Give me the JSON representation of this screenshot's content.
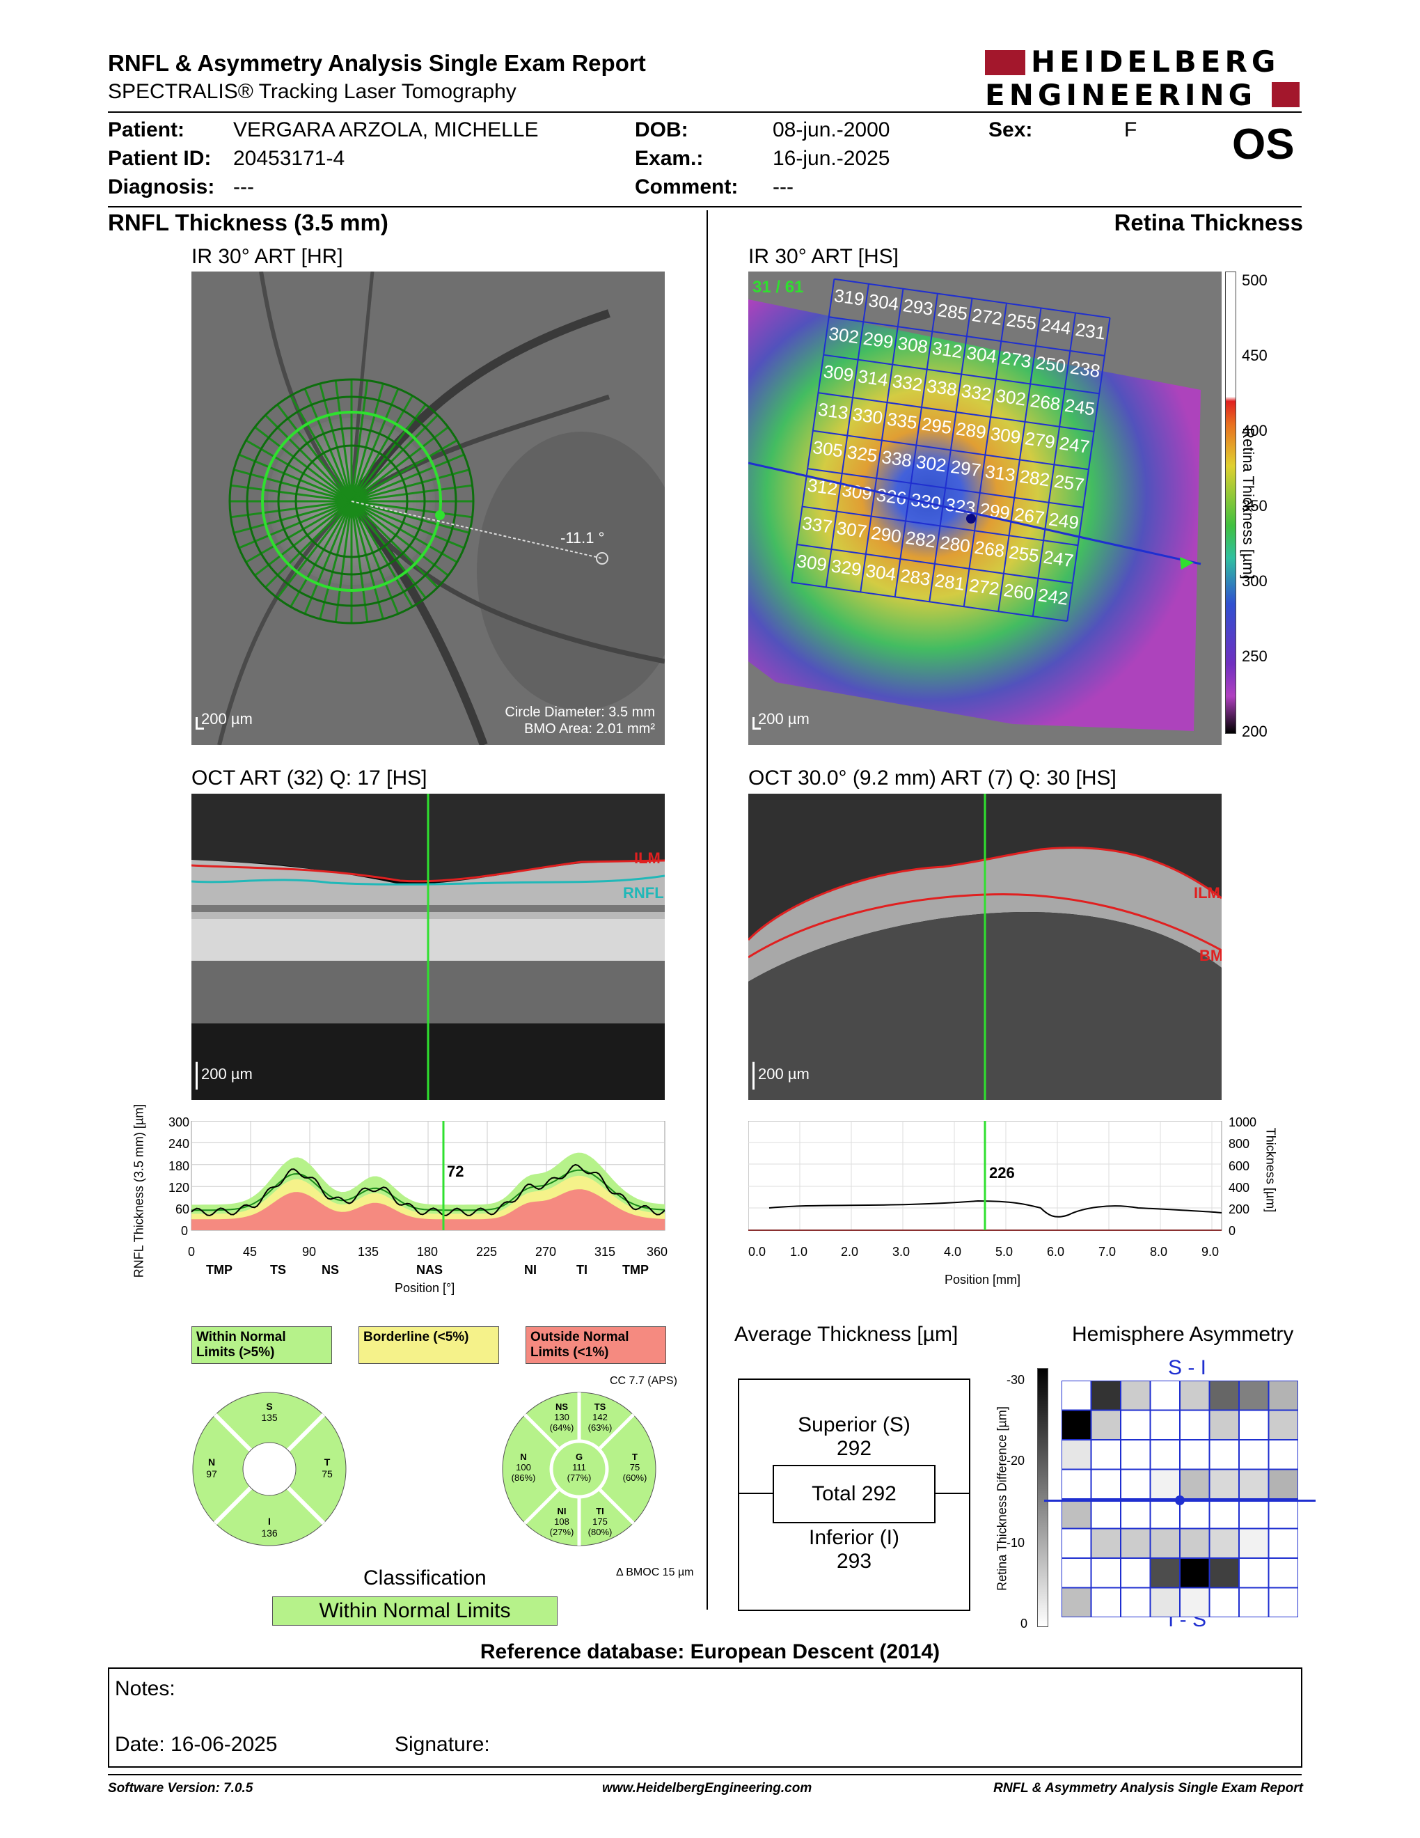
{
  "header": {
    "title": "RNFL & Asymmetry Analysis Single Exam Report",
    "subtitle": "SPECTRALIS® Tracking Laser Tomography",
    "logo_line1": "HEIDELBERG",
    "logo_line2": "ENGINEERING"
  },
  "patient": {
    "patient_label": "Patient:",
    "patient_value": "VERGARA ARZOLA, MICHELLE",
    "id_label": "Patient ID:",
    "id_value": "20453171-4",
    "diagnosis_label": "Diagnosis:",
    "diagnosis_value": "---",
    "dob_label": "DOB:",
    "dob_value": "08-jun.-2000",
    "exam_label": "Exam.:",
    "exam_value": "16-jun.-2025",
    "comment_label": "Comment:",
    "comment_value": "---",
    "sex_label": "Sex:",
    "sex_value": "F",
    "eye": "OS"
  },
  "left": {
    "section_title": "RNFL Thickness (3.5 mm)",
    "ir_title": "IR 30° ART [HR]",
    "ir_angle": "-11.1 °",
    "ir_scale": "200 µm",
    "circle_diameter": "Circle Diameter: 3.5 mm",
    "bmo_area": "BMO Area: 2.01 mm²",
    "oct_title": "OCT ART (32) Q: 17 [HS]",
    "oct_scale": "200 µm",
    "ilm": "ILM",
    "rnfl": "RNFL"
  },
  "right": {
    "section_title": "Retina Thickness",
    "ir_title": "IR 30° ART [HS]",
    "ir_scale": "200 µm",
    "grid_corner": "31 / 61",
    "colorbar_ticks": [
      "500",
      "450",
      "400",
      "350",
      "300",
      "250",
      "200"
    ],
    "colorbar_label": "Retina Thickness [µm]",
    "grid_values": [
      [
        "319",
        "304",
        "293",
        "285",
        "272",
        "255",
        "244",
        "231"
      ],
      [
        "302",
        "299",
        "308",
        "312",
        "304",
        "273",
        "250",
        "238"
      ],
      [
        "309",
        "314",
        "332",
        "338",
        "332",
        "302",
        "268",
        "245"
      ],
      [
        "313",
        "330",
        "335",
        "295",
        "289",
        "309",
        "279",
        "247"
      ],
      [
        "305",
        "325",
        "338",
        "302",
        "297",
        "313",
        "282",
        "257"
      ],
      [
        "312",
        "309",
        "326",
        "330",
        "323",
        "299",
        "267",
        "249"
      ],
      [
        "337",
        "307",
        "290",
        "282",
        "280",
        "268",
        "255",
        "247"
      ],
      [
        "309",
        "329",
        "304",
        "283",
        "281",
        "272",
        "260",
        "242"
      ]
    ],
    "oct_title": "OCT 30.0° (9.2 mm) ART (7) Q: 30 [HS]",
    "oct_scale": "200 µm",
    "ilm": "ILM",
    "bm": "BM"
  },
  "rnfl_plot": {
    "ylabel": "RNFL Thickness (3.5 mm) [µm]",
    "yticks": [
      "300",
      "240",
      "180",
      "120",
      "60",
      "0"
    ],
    "xticks": [
      "0",
      "45",
      "90",
      "135",
      "180",
      "225",
      "270",
      "315",
      "360"
    ],
    "sectors": [
      "TMP",
      "TS",
      "NS",
      "NAS",
      "NI",
      "TI",
      "TMP"
    ],
    "xlabel": "Position [°]",
    "cursor_value": "72"
  },
  "retina_plot": {
    "ylabel": "Thickness [µm]",
    "yticks": [
      "1000",
      "800",
      "600",
      "400",
      "200",
      "0"
    ],
    "xticks": [
      "0.0",
      "1.0",
      "2.0",
      "3.0",
      "4.0",
      "5.0",
      "6.0",
      "7.0",
      "8.0",
      "9.0"
    ],
    "xlabel": "Position [mm]",
    "cursor_value": "226"
  },
  "legend": {
    "within": "Within Normal Limits (>5%)",
    "borderline": "Borderline (<5%)",
    "outside": "Outside Normal Limits (<1%)",
    "within_color": "#b6f28a",
    "borderline_color": "#f5f28a",
    "outside_color": "#f58a80"
  },
  "sector_left": {
    "S": "135",
    "N": "97",
    "T": "75",
    "I": "136"
  },
  "sector_right": {
    "cc": "CC 7.7 (APS)",
    "NS": "NS",
    "NS_val": "130",
    "NS_pct": "(64%)",
    "TS": "TS",
    "TS_val": "142",
    "TS_pct": "(63%)",
    "N": "N",
    "N_val": "100",
    "N_pct": "(86%)",
    "G": "G",
    "G_val": "111",
    "G_pct": "(77%)",
    "T": "T",
    "T_val": "75",
    "T_pct": "(60%)",
    "NI": "NI",
    "NI_val": "108",
    "NI_pct": "(27%)",
    "TI": "TI",
    "TI_val": "175",
    "TI_pct": "(80%)",
    "bmoc": "Δ BMOC 15 µm"
  },
  "classification": {
    "label": "Classification",
    "value": "Within Normal Limits"
  },
  "avg_thickness": {
    "title": "Average Thickness [µm]",
    "superior_label": "Superior (S)",
    "superior_value": "292",
    "total_label": "Total 292",
    "inferior_label": "Inferior (I)",
    "inferior_value": "293"
  },
  "asymmetry": {
    "title": "Hemisphere Asymmetry",
    "top_label": "S - I",
    "bottom_label": "I - S",
    "axis_label": "Retina Thickness Difference [µm]",
    "ticks": [
      "-30",
      "-20",
      "-10",
      "0"
    ],
    "grid": [
      [
        0.0,
        0.8,
        0.2,
        0.0,
        0.2,
        0.6,
        0.5,
        0.3
      ],
      [
        1.0,
        0.2,
        0.0,
        0.0,
        0.0,
        0.2,
        0.0,
        0.2
      ],
      [
        0.1,
        0.0,
        0.0,
        0.0,
        0.0,
        0.0,
        0.0,
        0.0
      ],
      [
        0.0,
        0.0,
        0.0,
        0.05,
        0.25,
        0.15,
        0.15,
        0.3
      ],
      [
        0.25,
        0.0,
        0.0,
        0.0,
        0.0,
        0.0,
        0.0,
        0.0
      ],
      [
        0.0,
        0.2,
        0.2,
        0.2,
        0.2,
        0.15,
        0.05,
        0.0
      ],
      [
        0.0,
        0.0,
        0.0,
        0.7,
        1.0,
        0.75,
        0.0,
        0.0
      ],
      [
        0.25,
        0.0,
        0.0,
        0.1,
        0.05,
        0.0,
        0.0,
        0.0
      ]
    ]
  },
  "footer": {
    "reference": "Reference database: European Descent (2014)",
    "notes_label": "Notes:",
    "date_label": "Date: 16-06-2025",
    "signature_label": "Signature:",
    "software": "Software Version: 7.0.5",
    "website": "www.HeidelbergEngineering.com",
    "report_name": "RNFL & Asymmetry Analysis Single Exam Report"
  }
}
